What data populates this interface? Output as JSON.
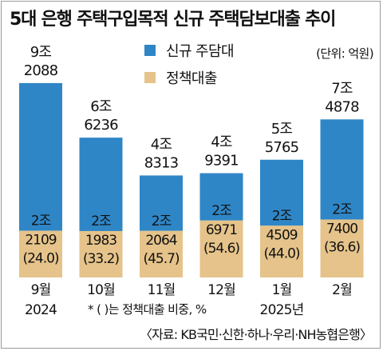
{
  "title": "5대 은행 주택구입목적 신규 주택담보대출 추이",
  "unit": "(단위: 억원)",
  "note": "* ( )는 정책대출 비중, %",
  "source": "〈자료: KB국민·신한·하나·우리·NH농협은행〉",
  "colors": {
    "total": "#2f86c6",
    "policy": "#e5c38a"
  },
  "chart_data": {
    "type": "bar",
    "stacked": true,
    "categories": [
      "9월",
      "10월",
      "11월",
      "12월",
      "1월",
      "2월"
    ],
    "years": [
      "2024",
      "",
      "",
      "",
      "2025년",
      ""
    ],
    "series": [
      {
        "name": "신규 주담대",
        "values": [
          92088,
          66236,
          48313,
          49391,
          55765,
          74878
        ],
        "labels_top": [
          "9조",
          "6조",
          "4조",
          "4조",
          "5조",
          "7조"
        ],
        "labels_bottom": [
          "2088",
          "6236",
          "8313",
          "9391",
          "5765",
          "4878"
        ]
      },
      {
        "name": "정책대출",
        "values": [
          22109,
          21983,
          22064,
          26971,
          24509,
          27400
        ],
        "labels_top": [
          "2조",
          "2조",
          "2조",
          "2조",
          "2조",
          "2조"
        ],
        "labels_bottom": [
          "2109",
          "1983",
          "2064",
          "6971",
          "4509",
          "7400"
        ]
      }
    ],
    "shares": [
      "(24.0)",
      "(33.2)",
      "(45.7)",
      "(54.6)",
      "(44.0)",
      "(36.6)"
    ],
    "legend_position": "top"
  }
}
